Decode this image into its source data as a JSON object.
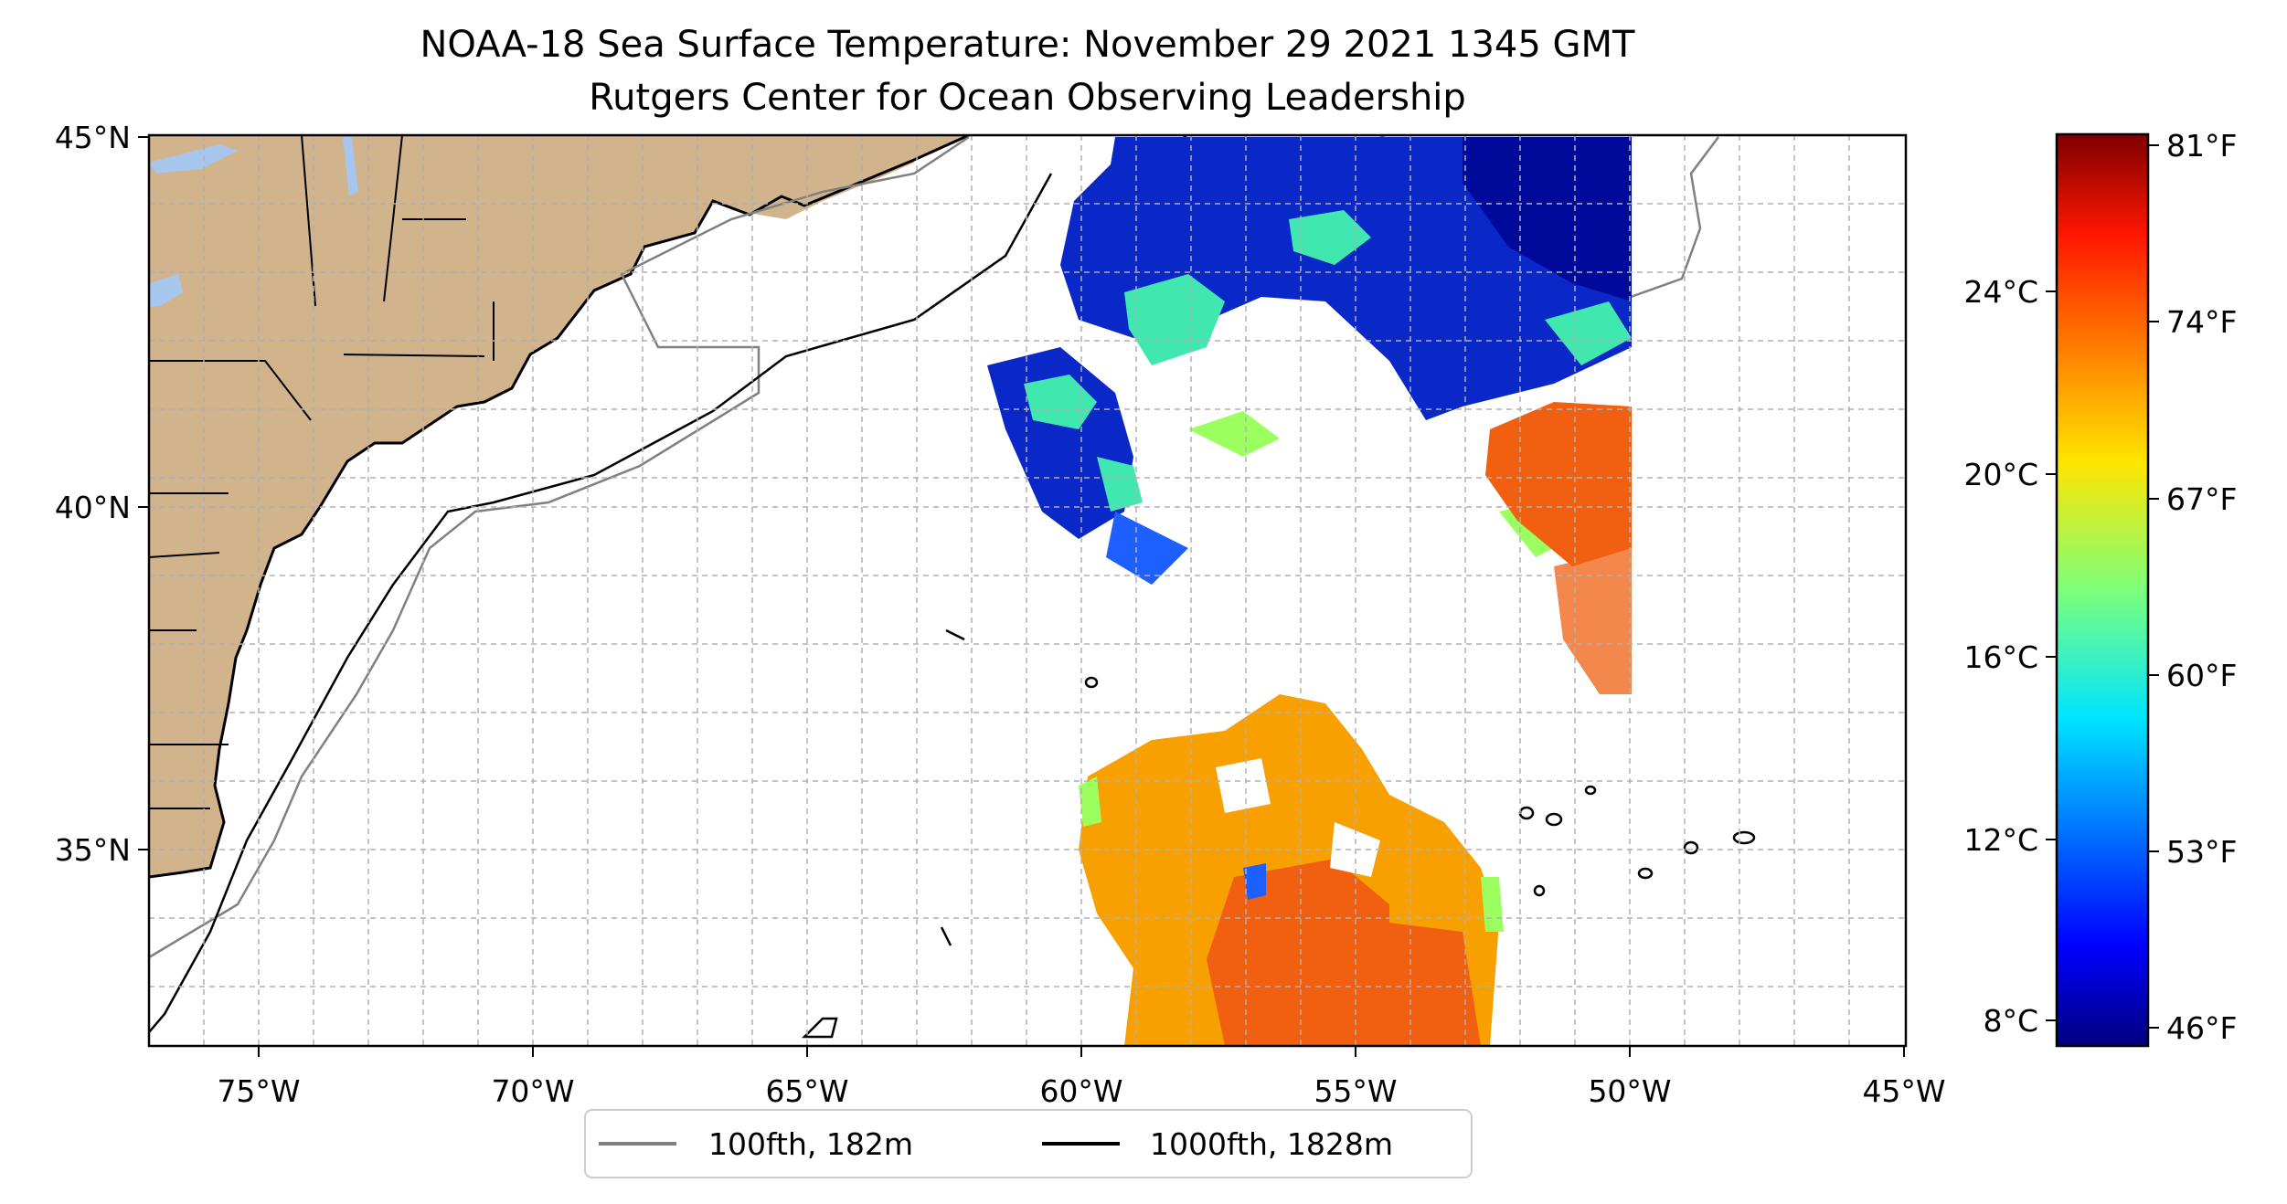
{
  "title": "NOAA-18 Sea Surface Temperature: November 29 2021 1345 GMT",
  "subtitle": "Rutgers Center for Ocean Observing Leadership",
  "lon_labels": [
    "75°W",
    "70°W",
    "65°W",
    "60°W",
    "55°W",
    "50°W",
    "45°W"
  ],
  "lat_labels": [
    "45°N",
    "40°N",
    "35°N"
  ],
  "colorbar": {
    "celsius_labels": [
      "24°C",
      "20°C",
      "16°C",
      "12°C",
      "8°C"
    ],
    "fahrenheit_labels": [
      "81°F",
      "74°F",
      "67°F",
      "60°F",
      "53°F",
      "46°F"
    ]
  },
  "legend": [
    {
      "label": "100fth, 182m",
      "color": "#808080"
    },
    {
      "label": "1000fth, 1828m",
      "color": "#000000"
    }
  ],
  "colors": {
    "land": "#d2b48c",
    "lakes": "#a6c6ee",
    "grid": "#b0b0b0",
    "cold": "#0a28c8",
    "cool": "#40e8b0",
    "warm": "#f7a000",
    "hot": "#f06010"
  }
}
